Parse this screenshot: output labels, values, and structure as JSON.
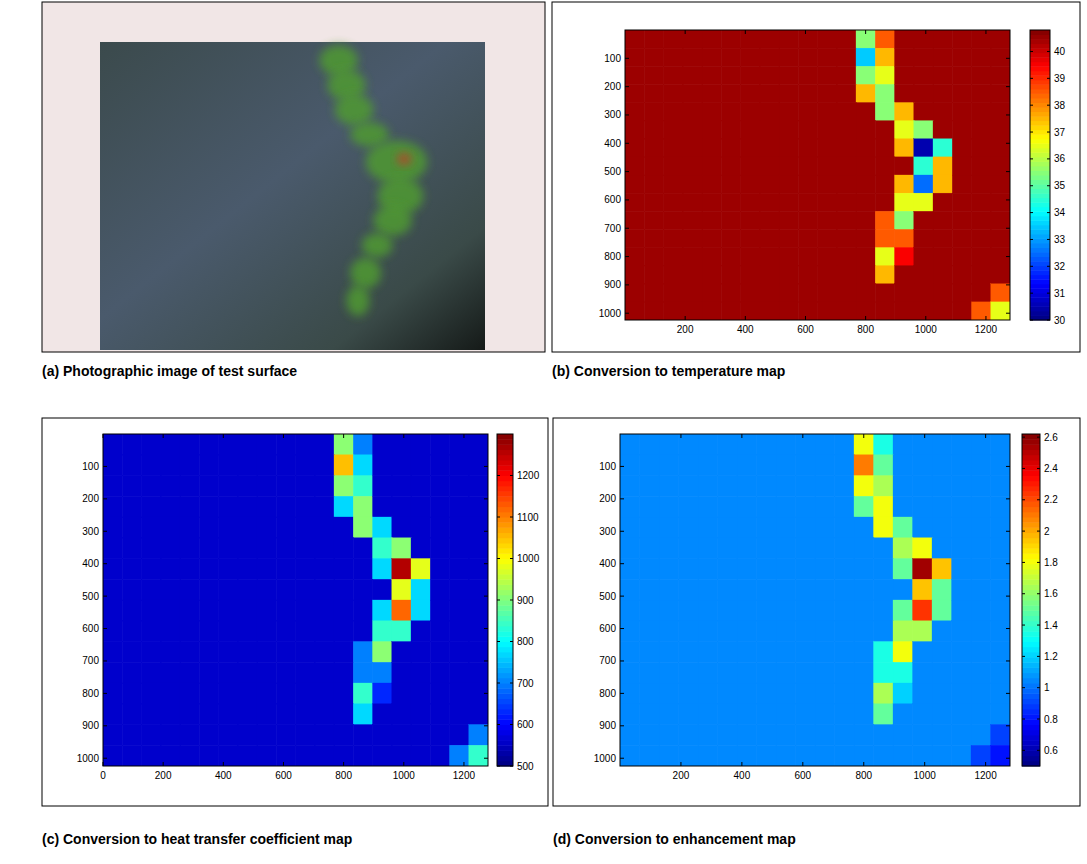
{
  "chart_data": [
    {
      "type": "image",
      "caption": "(a) Photographic image of test surface"
    },
    {
      "type": "heatmap",
      "caption": "(b) Conversion to temperature map",
      "xlim": [
        0,
        1280
      ],
      "ylim": [
        1024,
        0
      ],
      "xticks": [
        200,
        400,
        600,
        800,
        1000,
        1200
      ],
      "yticks": [
        100,
        200,
        300,
        400,
        500,
        600,
        700,
        800,
        900,
        1000
      ],
      "colorbar": {
        "range": [
          30,
          40.8
        ],
        "ticks": [
          30,
          31,
          32,
          33,
          34,
          35,
          36,
          37,
          38,
          39,
          40
        ]
      },
      "cells": [
        [
          40.5,
          40.5,
          40.5,
          40.5,
          40.5,
          40.5,
          40.5,
          40.5,
          40.5,
          40.5,
          40.5,
          40.5,
          35.5,
          38.5,
          40.5,
          40.5,
          40.5,
          40.5,
          40.5,
          40.5
        ],
        [
          40.5,
          40.5,
          40.5,
          40.5,
          40.5,
          40.5,
          40.5,
          40.5,
          40.5,
          40.5,
          40.5,
          40.5,
          33.5,
          37.5,
          40.5,
          40.5,
          40.5,
          40.5,
          40.5,
          40.5
        ],
        [
          40.5,
          40.5,
          40.5,
          40.5,
          40.5,
          40.5,
          40.5,
          40.5,
          40.5,
          40.5,
          40.5,
          40.5,
          35.5,
          36.5,
          40.5,
          40.5,
          40.5,
          40.5,
          40.5,
          40.5
        ],
        [
          40.5,
          40.5,
          40.5,
          40.5,
          40.5,
          40.5,
          40.5,
          40.5,
          40.5,
          40.5,
          40.5,
          40.5,
          37.5,
          35.5,
          40.5,
          40.5,
          40.5,
          40.5,
          40.5,
          40.5
        ],
        [
          40.5,
          40.5,
          40.5,
          40.5,
          40.5,
          40.5,
          40.5,
          40.5,
          40.5,
          40.5,
          40.5,
          40.5,
          40.5,
          35.5,
          37.5,
          40.5,
          40.5,
          40.5,
          40.5,
          40.5
        ],
        [
          40.5,
          40.5,
          40.5,
          40.5,
          40.5,
          40.5,
          40.5,
          40.5,
          40.5,
          40.5,
          40.5,
          40.5,
          40.5,
          40.5,
          36.5,
          35.5,
          40.5,
          40.5,
          40.5,
          40.5
        ],
        [
          40.5,
          40.5,
          40.5,
          40.5,
          40.5,
          40.5,
          40.5,
          40.5,
          40.5,
          40.5,
          40.5,
          40.5,
          40.5,
          40.5,
          37.5,
          30.5,
          34.5,
          40.5,
          40.5,
          40.5
        ],
        [
          40.5,
          40.5,
          40.5,
          40.5,
          40.5,
          40.5,
          40.5,
          40.5,
          40.5,
          40.5,
          40.5,
          40.5,
          40.5,
          40.5,
          40.5,
          34.5,
          37.5,
          40.5,
          40.5,
          40.5
        ],
        [
          40.5,
          40.5,
          40.5,
          40.5,
          40.5,
          40.5,
          40.5,
          40.5,
          40.5,
          40.5,
          40.5,
          40.5,
          40.5,
          40.5,
          37.5,
          32.5,
          37.5,
          40.5,
          40.5,
          40.5
        ],
        [
          40.5,
          40.5,
          40.5,
          40.5,
          40.5,
          40.5,
          40.5,
          40.5,
          40.5,
          40.5,
          40.5,
          40.5,
          40.5,
          40.5,
          36.5,
          36.5,
          40.5,
          40.5,
          40.5,
          40.5
        ],
        [
          40.5,
          40.5,
          40.5,
          40.5,
          40.5,
          40.5,
          40.5,
          40.5,
          40.5,
          40.5,
          40.5,
          40.5,
          40.5,
          38.5,
          35.5,
          40.5,
          40.5,
          40.5,
          40.5,
          40.5
        ],
        [
          40.5,
          40.5,
          40.5,
          40.5,
          40.5,
          40.5,
          40.5,
          40.5,
          40.5,
          40.5,
          40.5,
          40.5,
          40.5,
          38.5,
          38.5,
          40.5,
          40.5,
          40.5,
          40.5,
          40.5
        ],
        [
          40.5,
          40.5,
          40.5,
          40.5,
          40.5,
          40.5,
          40.5,
          40.5,
          40.5,
          40.5,
          40.5,
          40.5,
          40.5,
          36.5,
          39.5,
          40.5,
          40.5,
          40.5,
          40.5,
          40.5
        ],
        [
          40.5,
          40.5,
          40.5,
          40.5,
          40.5,
          40.5,
          40.5,
          40.5,
          40.5,
          40.5,
          40.5,
          40.5,
          40.5,
          37.5,
          40.5,
          40.5,
          40.5,
          40.5,
          40.5,
          40.5
        ],
        [
          40.5,
          40.5,
          40.5,
          40.5,
          40.5,
          40.5,
          40.5,
          40.5,
          40.5,
          40.5,
          40.5,
          40.5,
          40.5,
          40.5,
          40.5,
          40.5,
          40.5,
          40.5,
          40.5,
          38.5
        ],
        [
          40.5,
          40.5,
          40.5,
          40.5,
          40.5,
          40.5,
          40.5,
          40.5,
          40.5,
          40.5,
          40.5,
          40.5,
          40.5,
          40.5,
          40.5,
          40.5,
          40.5,
          40.5,
          38.5,
          36.5
        ]
      ]
    },
    {
      "type": "heatmap",
      "caption": "(c) Conversion to heat transfer coefficient map",
      "xlim": [
        0,
        1280
      ],
      "ylim": [
        1024,
        0
      ],
      "xticks": [
        0,
        200,
        400,
        600,
        800,
        1000,
        1200
      ],
      "yticks": [
        100,
        200,
        300,
        400,
        500,
        600,
        700,
        800,
        900,
        1000
      ],
      "colorbar": {
        "range": [
          500,
          1300
        ],
        "ticks": [
          500,
          600,
          700,
          800,
          900,
          1000,
          1100,
          1200
        ]
      },
      "cells": [
        [
          560,
          560,
          560,
          560,
          560,
          560,
          560,
          560,
          560,
          560,
          560,
          560,
          910,
          700,
          560,
          560,
          560,
          560,
          560,
          560
        ],
        [
          560,
          560,
          560,
          560,
          560,
          560,
          560,
          560,
          560,
          560,
          560,
          560,
          1050,
          770,
          560,
          560,
          560,
          560,
          560,
          560
        ],
        [
          560,
          560,
          560,
          560,
          560,
          560,
          560,
          560,
          560,
          560,
          560,
          560,
          910,
          840,
          560,
          560,
          560,
          560,
          560,
          560
        ],
        [
          560,
          560,
          560,
          560,
          560,
          560,
          560,
          560,
          560,
          560,
          560,
          560,
          770,
          910,
          560,
          560,
          560,
          560,
          560,
          560
        ],
        [
          560,
          560,
          560,
          560,
          560,
          560,
          560,
          560,
          560,
          560,
          560,
          560,
          560,
          910,
          770,
          560,
          560,
          560,
          560,
          560
        ],
        [
          560,
          560,
          560,
          560,
          560,
          560,
          560,
          560,
          560,
          560,
          560,
          560,
          560,
          560,
          840,
          910,
          560,
          560,
          560,
          560
        ],
        [
          560,
          560,
          560,
          560,
          560,
          560,
          560,
          560,
          560,
          560,
          560,
          560,
          560,
          560,
          770,
          1260,
          980,
          560,
          560,
          560
        ],
        [
          560,
          560,
          560,
          560,
          560,
          560,
          560,
          560,
          560,
          560,
          560,
          560,
          560,
          560,
          560,
          980,
          770,
          560,
          560,
          560
        ],
        [
          560,
          560,
          560,
          560,
          560,
          560,
          560,
          560,
          560,
          560,
          560,
          560,
          560,
          560,
          770,
          1120,
          770,
          560,
          560,
          560
        ],
        [
          560,
          560,
          560,
          560,
          560,
          560,
          560,
          560,
          560,
          560,
          560,
          560,
          560,
          560,
          840,
          840,
          560,
          560,
          560,
          560
        ],
        [
          560,
          560,
          560,
          560,
          560,
          560,
          560,
          560,
          560,
          560,
          560,
          560,
          560,
          700,
          910,
          560,
          560,
          560,
          560,
          560
        ],
        [
          560,
          560,
          560,
          560,
          560,
          560,
          560,
          560,
          560,
          560,
          560,
          560,
          560,
          700,
          700,
          560,
          560,
          560,
          560,
          560
        ],
        [
          560,
          560,
          560,
          560,
          560,
          560,
          560,
          560,
          560,
          560,
          560,
          560,
          560,
          840,
          630,
          560,
          560,
          560,
          560,
          560
        ],
        [
          560,
          560,
          560,
          560,
          560,
          560,
          560,
          560,
          560,
          560,
          560,
          560,
          560,
          770,
          560,
          560,
          560,
          560,
          560,
          560
        ],
        [
          560,
          560,
          560,
          560,
          560,
          560,
          560,
          560,
          560,
          560,
          560,
          560,
          560,
          560,
          560,
          560,
          560,
          560,
          560,
          700
        ],
        [
          560,
          560,
          560,
          560,
          560,
          560,
          560,
          560,
          560,
          560,
          560,
          560,
          560,
          560,
          560,
          560,
          560,
          560,
          700,
          840
        ]
      ]
    },
    {
      "type": "heatmap",
      "caption": "(d) Conversion to enhancement map",
      "xlim": [
        0,
        1280
      ],
      "ylim": [
        1024,
        0
      ],
      "xticks": [
        200,
        400,
        600,
        800,
        1000,
        1200
      ],
      "yticks": [
        100,
        200,
        300,
        400,
        500,
        600,
        700,
        800,
        900,
        1000
      ],
      "colorbar": {
        "range": [
          0.5,
          2.62
        ],
        "ticks": [
          0.6,
          0.8,
          1,
          1.2,
          1.4,
          1.6,
          1.8,
          2,
          2.2,
          2.4,
          2.6
        ]
      },
      "cells": [
        [
          1.05,
          1.05,
          1.05,
          1.05,
          1.05,
          1.05,
          1.05,
          1.05,
          1.05,
          1.05,
          1.05,
          1.05,
          1.8,
          1.35,
          1.05,
          1.05,
          1.05,
          1.05,
          1.05,
          1.05
        ],
        [
          1.05,
          1.05,
          1.05,
          1.05,
          1.05,
          1.05,
          1.05,
          1.05,
          1.05,
          1.05,
          1.05,
          1.05,
          2.1,
          1.5,
          1.05,
          1.05,
          1.05,
          1.05,
          1.05,
          1.05
        ],
        [
          1.05,
          1.05,
          1.05,
          1.05,
          1.05,
          1.05,
          1.05,
          1.05,
          1.05,
          1.05,
          1.05,
          1.05,
          1.8,
          1.65,
          1.05,
          1.05,
          1.05,
          1.05,
          1.05,
          1.05
        ],
        [
          1.05,
          1.05,
          1.05,
          1.05,
          1.05,
          1.05,
          1.05,
          1.05,
          1.05,
          1.05,
          1.05,
          1.05,
          1.5,
          1.8,
          1.05,
          1.05,
          1.05,
          1.05,
          1.05,
          1.05
        ],
        [
          1.05,
          1.05,
          1.05,
          1.05,
          1.05,
          1.05,
          1.05,
          1.05,
          1.05,
          1.05,
          1.05,
          1.05,
          1.05,
          1.8,
          1.5,
          1.05,
          1.05,
          1.05,
          1.05,
          1.05
        ],
        [
          1.05,
          1.05,
          1.05,
          1.05,
          1.05,
          1.05,
          1.05,
          1.05,
          1.05,
          1.05,
          1.05,
          1.05,
          1.05,
          1.05,
          1.65,
          1.8,
          1.05,
          1.05,
          1.05,
          1.05
        ],
        [
          1.05,
          1.05,
          1.05,
          1.05,
          1.05,
          1.05,
          1.05,
          1.05,
          1.05,
          1.05,
          1.05,
          1.05,
          1.05,
          1.05,
          1.5,
          2.55,
          1.95,
          1.05,
          1.05,
          1.05
        ],
        [
          1.05,
          1.05,
          1.05,
          1.05,
          1.05,
          1.05,
          1.05,
          1.05,
          1.05,
          1.05,
          1.05,
          1.05,
          1.05,
          1.05,
          1.05,
          1.95,
          1.5,
          1.05,
          1.05,
          1.05
        ],
        [
          1.05,
          1.05,
          1.05,
          1.05,
          1.05,
          1.05,
          1.05,
          1.05,
          1.05,
          1.05,
          1.05,
          1.05,
          1.05,
          1.05,
          1.5,
          2.25,
          1.5,
          1.05,
          1.05,
          1.05
        ],
        [
          1.05,
          1.05,
          1.05,
          1.05,
          1.05,
          1.05,
          1.05,
          1.05,
          1.05,
          1.05,
          1.05,
          1.05,
          1.05,
          1.05,
          1.65,
          1.65,
          1.05,
          1.05,
          1.05,
          1.05
        ],
        [
          1.05,
          1.05,
          1.05,
          1.05,
          1.05,
          1.05,
          1.05,
          1.05,
          1.05,
          1.05,
          1.05,
          1.05,
          1.05,
          1.35,
          1.8,
          1.05,
          1.05,
          1.05,
          1.05,
          1.05
        ],
        [
          1.05,
          1.05,
          1.05,
          1.05,
          1.05,
          1.05,
          1.05,
          1.05,
          1.05,
          1.05,
          1.05,
          1.05,
          1.05,
          1.35,
          1.35,
          1.05,
          1.05,
          1.05,
          1.05,
          1.05
        ],
        [
          1.05,
          1.05,
          1.05,
          1.05,
          1.05,
          1.05,
          1.05,
          1.05,
          1.05,
          1.05,
          1.05,
          1.05,
          1.05,
          1.65,
          1.2,
          1.05,
          1.05,
          1.05,
          1.05,
          1.05
        ],
        [
          1.05,
          1.05,
          1.05,
          1.05,
          1.05,
          1.05,
          1.05,
          1.05,
          1.05,
          1.05,
          1.05,
          1.05,
          1.05,
          1.5,
          1.05,
          1.05,
          1.05,
          1.05,
          1.05,
          1.05
        ],
        [
          1.05,
          1.05,
          1.05,
          1.05,
          1.05,
          1.05,
          1.05,
          1.05,
          1.05,
          1.05,
          1.05,
          1.05,
          1.05,
          1.05,
          1.05,
          1.05,
          1.05,
          1.05,
          1.05,
          0.9
        ],
        [
          1.05,
          1.05,
          1.05,
          1.05,
          1.05,
          1.05,
          1.05,
          1.05,
          1.05,
          1.05,
          1.05,
          1.05,
          1.05,
          1.05,
          1.05,
          1.05,
          1.05,
          1.05,
          0.9,
          0.8
        ]
      ]
    }
  ]
}
